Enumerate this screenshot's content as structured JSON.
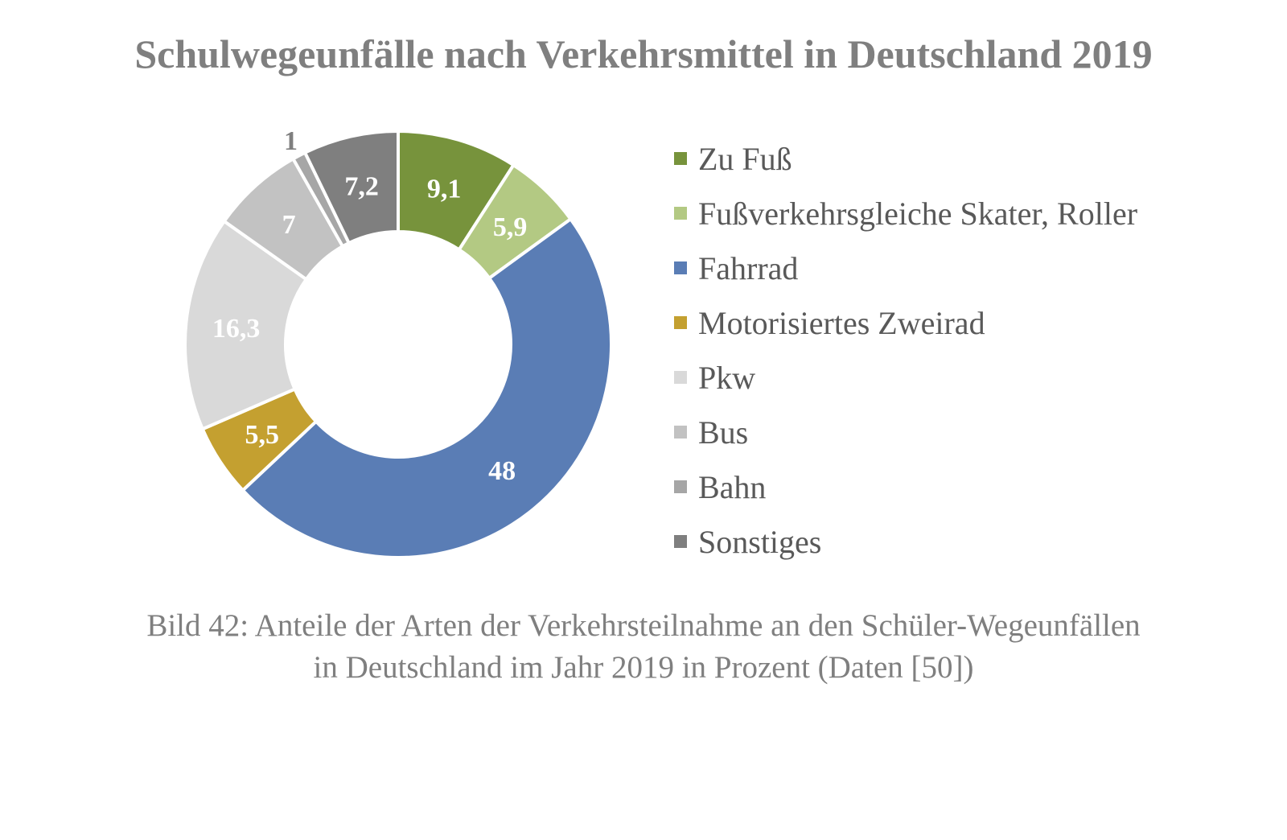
{
  "chart_data": {
    "type": "pie",
    "subtype": "donut",
    "title": "Schulwegeunfälle nach Verkehrsmittel in Deutschland 2019",
    "unit": "Prozent",
    "categories": [
      "Zu Fuß",
      "Fußverkehrsgleiche Skater, Roller",
      "Fahrrad",
      "Motorisiertes Zweirad",
      "Pkw",
      "Bus",
      "Bahn",
      "Sonstiges"
    ],
    "values": [
      9.1,
      5.9,
      48,
      5.5,
      16.3,
      7,
      1,
      7.2
    ],
    "data_labels": [
      "9,1",
      "5,9",
      "48",
      "5,5",
      "16,3",
      "7",
      "1",
      "7,2"
    ],
    "colors": [
      "#77933c",
      "#b3c983",
      "#5a7db5",
      "#c4a030",
      "#d9d9d9",
      "#c2c2c2",
      "#a6a6a6",
      "#7f7f7f"
    ],
    "label_colors": [
      "#ffffff",
      "#ffffff",
      "#ffffff",
      "#ffffff",
      "#ffffff",
      "#ffffff",
      "#7f7f7f",
      "#ffffff"
    ],
    "legend_position": "right"
  },
  "caption": {
    "line1": "Bild 42: Anteile der Arten der Verkehrsteilnahme an den Schüler-Wegeunfällen",
    "line2": "in Deutschland im Jahr 2019 in Prozent (Daten [50])"
  }
}
